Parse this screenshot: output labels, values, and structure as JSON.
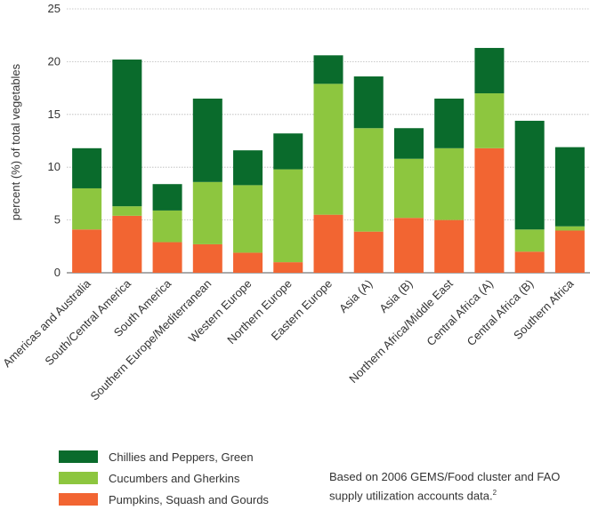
{
  "chart_data": {
    "type": "bar",
    "stacked": true,
    "title": "",
    "xlabel": "",
    "ylabel": "percent (%) of total vegetables",
    "ylim": [
      0,
      25
    ],
    "yticks": [
      0,
      5,
      10,
      15,
      20,
      25
    ],
    "categories": [
      "Americas and Australia",
      "South/Central America",
      "South America",
      "Southern Europe/Mediterranean",
      "Western Europe",
      "Northern Europe",
      "Eastern Europe",
      "Asia (A)",
      "Asia (B)",
      "Northern Africa/Middle East",
      "Central Africa (A)",
      "Central Africa (B)",
      "Southern Africa"
    ],
    "series": [
      {
        "name": "Pumpkins, Squash and Gourds",
        "color": "#f26532",
        "values": [
          4.1,
          5.4,
          2.9,
          2.7,
          1.9,
          1.0,
          5.5,
          3.9,
          5.2,
          5.0,
          11.8,
          2.0,
          4.0
        ]
      },
      {
        "name": "Cucumbers and Gherkins",
        "color": "#8dc63f",
        "values": [
          3.9,
          0.9,
          3.0,
          5.9,
          6.4,
          8.8,
          12.4,
          9.8,
          5.6,
          6.8,
          5.2,
          2.1,
          0.4
        ]
      },
      {
        "name": "Chillies and Peppers, Green",
        "color": "#0a6b2c",
        "values": [
          3.8,
          13.9,
          2.5,
          7.9,
          3.3,
          3.4,
          2.7,
          4.9,
          2.9,
          4.7,
          4.3,
          10.3,
          7.5
        ]
      }
    ],
    "legend": {
      "position": "bottom-left",
      "items": [
        {
          "label": "Chillies and Peppers, Green",
          "color": "#0a6b2c"
        },
        {
          "label": "Cucumbers and Gherkins",
          "color": "#8dc63f"
        },
        {
          "label": "Pumpkins, Squash and Gourds",
          "color": "#f26532"
        }
      ]
    },
    "note": {
      "text": "Based on 2006 GEMS/Food cluster and FAO supply utilization accounts data.",
      "superscript": "2"
    }
  }
}
